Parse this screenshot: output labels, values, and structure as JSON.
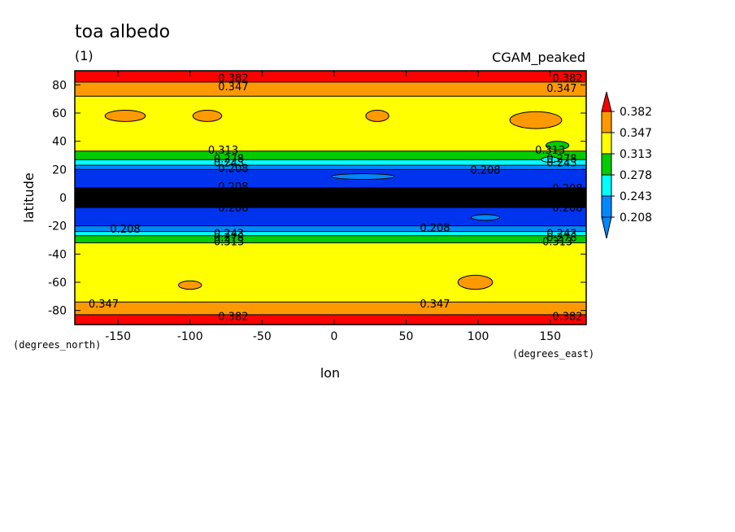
{
  "title": "toa albedo",
  "subtitle": "(1)",
  "dataset_label": "CGAM_peaked",
  "chart_data": {
    "type": "heatmap",
    "variable": "toa albedo",
    "units": "(1)",
    "xlabel": "lon",
    "ylabel": "latitude",
    "x_units": "(degrees_east)",
    "y_units": "(degrees_north)",
    "xlim": [
      -180,
      175
    ],
    "ylim": [
      -90,
      90
    ],
    "x_ticks": [
      -150,
      -100,
      -50,
      0,
      50,
      100,
      150
    ],
    "y_ticks": [
      -80,
      -60,
      -40,
      -20,
      0,
      20,
      40,
      60,
      80
    ],
    "x_tick_labels": [
      "-150",
      "-100",
      "-50",
      "0",
      "50",
      "100",
      "150"
    ],
    "y_tick_labels": [
      "-80",
      "-60",
      "-40",
      "-20",
      "0",
      "20",
      "40",
      "60",
      "80"
    ],
    "colorbar": {
      "levels": [
        "0.382",
        "0.347",
        "0.313",
        "0.278",
        "0.243",
        "0.208"
      ],
      "colors": [
        "#ff0000",
        "#ff9900",
        "#ffff00",
        "#00cc00",
        "#00ffff",
        "#0088ff",
        "#0033ee"
      ]
    },
    "zonal_bands": [
      {
        "lat_from": 82,
        "lat_to": 90,
        "color": "#ff0000"
      },
      {
        "lat_from": 72,
        "lat_to": 82,
        "color": "#ff9900"
      },
      {
        "lat_from": 33,
        "lat_to": 72,
        "color": "#ffff00"
      },
      {
        "lat_from": 27,
        "lat_to": 33,
        "color": "#00cc00"
      },
      {
        "lat_from": 23,
        "lat_to": 27,
        "color": "#00ffff"
      },
      {
        "lat_from": 20,
        "lat_to": 23,
        "color": "#0088ff"
      },
      {
        "lat_from": 7,
        "lat_to": 20,
        "color": "#0033ee"
      },
      {
        "lat_from": -7,
        "lat_to": 7,
        "color": "#000000"
      },
      {
        "lat_from": -20,
        "lat_to": -7,
        "color": "#0033ee"
      },
      {
        "lat_from": -24,
        "lat_to": -20,
        "color": "#0088ff"
      },
      {
        "lat_from": -27,
        "lat_to": -24,
        "color": "#00ffff"
      },
      {
        "lat_from": -32,
        "lat_to": -27,
        "color": "#00cc00"
      },
      {
        "lat_from": -74,
        "lat_to": -32,
        "color": "#ffff00"
      },
      {
        "lat_from": -83,
        "lat_to": -74,
        "color": "#ff9900"
      },
      {
        "lat_from": -90,
        "lat_to": -83,
        "color": "#ff0000"
      }
    ],
    "patches": [
      {
        "lon": -145,
        "lat": 58,
        "dlon": 14,
        "dlat": 4,
        "color": "#ff9900"
      },
      {
        "lon": -88,
        "lat": 58,
        "dlon": 10,
        "dlat": 4,
        "color": "#ff9900"
      },
      {
        "lon": 30,
        "lat": 58,
        "dlon": 8,
        "dlat": 4,
        "color": "#ff9900"
      },
      {
        "lon": 140,
        "lat": 55,
        "dlon": 18,
        "dlat": 6,
        "color": "#ff9900"
      },
      {
        "lon": -100,
        "lat": -62,
        "dlon": 8,
        "dlat": 3,
        "color": "#ff9900"
      },
      {
        "lon": 98,
        "lat": -60,
        "dlon": 12,
        "dlat": 5,
        "color": "#ff9900"
      },
      {
        "lon": 155,
        "lat": 37,
        "dlon": 8,
        "dlat": 3,
        "color": "#00cc00"
      },
      {
        "lon": 150,
        "lat": 27,
        "dlon": 6,
        "dlat": 2,
        "color": "#00ffff"
      },
      {
        "lon": 20,
        "lat": 15,
        "dlon": 22,
        "dlat": 2,
        "color": "#0088ff"
      },
      {
        "lon": 105,
        "lat": -14,
        "dlon": 10,
        "dlat": 2,
        "color": "#0088ff"
      }
    ],
    "contour_labels": [
      {
        "text": "0.382",
        "lon": -70,
        "lat": 85
      },
      {
        "text": "0.347",
        "lon": -70,
        "lat": 79
      },
      {
        "text": "0.382",
        "lon": 162,
        "lat": 85
      },
      {
        "text": "0.347",
        "lon": 158,
        "lat": 78
      },
      {
        "text": "0.313",
        "lon": -77,
        "lat": 34
      },
      {
        "text": "0.278",
        "lon": -73,
        "lat": 28
      },
      {
        "text": "0.243",
        "lon": -73,
        "lat": 25
      },
      {
        "text": "0.208",
        "lon": -70,
        "lat": 21
      },
      {
        "text": "0.313",
        "lon": 150,
        "lat": 34
      },
      {
        "text": "0.278",
        "lon": 158,
        "lat": 28
      },
      {
        "text": "0.243",
        "lon": 158,
        "lat": 25
      },
      {
        "text": "0.208",
        "lon": 105,
        "lat": 20
      },
      {
        "text": "0.208",
        "lon": -70,
        "lat": 8
      },
      {
        "text": "0.208",
        "lon": -70,
        "lat": -7
      },
      {
        "text": "0.208",
        "lon": 162,
        "lat": 7
      },
      {
        "text": "0.208",
        "lon": 162,
        "lat": -7
      },
      {
        "text": "0.208",
        "lon": -145,
        "lat": -22
      },
      {
        "text": "0.208",
        "lon": 70,
        "lat": -21
      },
      {
        "text": "0.243",
        "lon": -73,
        "lat": -25
      },
      {
        "text": "0.278",
        "lon": -73,
        "lat": -28
      },
      {
        "text": "0.313",
        "lon": -73,
        "lat": -31
      },
      {
        "text": "0.243",
        "lon": 158,
        "lat": -25
      },
      {
        "text": "0.278",
        "lon": 158,
        "lat": -28
      },
      {
        "text": "0.313",
        "lon": 155,
        "lat": -31
      },
      {
        "text": "0.347",
        "lon": -160,
        "lat": -75
      },
      {
        "text": "0.347",
        "lon": 70,
        "lat": -75
      },
      {
        "text": "0.382",
        "lon": -70,
        "lat": -84
      },
      {
        "text": "0.382",
        "lon": 162,
        "lat": -84
      }
    ]
  }
}
